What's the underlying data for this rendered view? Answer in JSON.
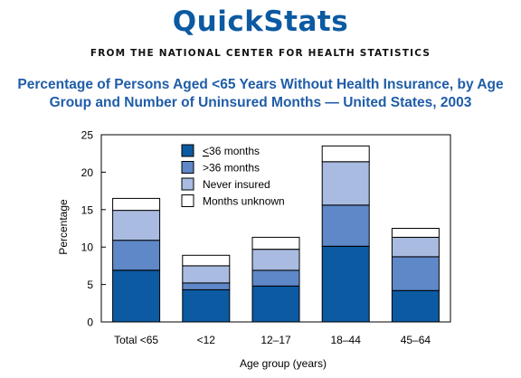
{
  "header": {
    "brand": "QuickStats",
    "source": "FROM THE NATIONAL CENTER FOR HEALTH STATISTICS"
  },
  "chart_data": {
    "type": "bar",
    "stacked": true,
    "title_lines": [
      "Percentage of Persons Aged <65 Years Without Health Insurance, by Age",
      "Group and Number of Uninsured Months — United States, 2003"
    ],
    "xlabel": "Age group (years)",
    "ylabel": "Percentage",
    "ylim": [
      0,
      25
    ],
    "yticks": [
      "0",
      "5",
      "10",
      "15",
      "20",
      "25"
    ],
    "grid": false,
    "legend_position": "top-center",
    "categories": [
      "Total <65",
      "<12",
      "12–17",
      "18–44",
      "45–64"
    ],
    "series": [
      {
        "name": "<36 months",
        "color": "#0b5aa2",
        "values": [
          6.9,
          4.3,
          4.8,
          10.1,
          4.2
        ]
      },
      {
        "name": ">36 months",
        "color": "#5f88c8",
        "values": [
          4.0,
          0.9,
          2.1,
          5.5,
          4.5
        ]
      },
      {
        "name": "Never insured",
        "color": "#a9bbe0",
        "values": [
          4.0,
          2.3,
          2.8,
          5.8,
          2.6
        ]
      },
      {
        "name": "Months unknown",
        "color": "#ffffff",
        "values": [
          1.6,
          1.4,
          1.6,
          2.1,
          1.2
        ]
      }
    ]
  }
}
